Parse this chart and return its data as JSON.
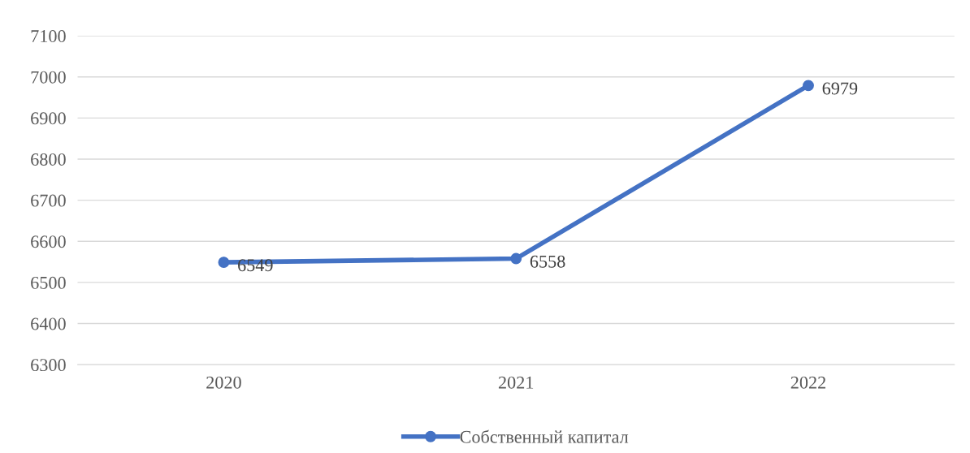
{
  "chart_data": {
    "type": "line",
    "categories": [
      "2020",
      "2021",
      "2022"
    ],
    "series": [
      {
        "name": "Собственный капитал",
        "color": "#4472c4",
        "values": [
          6549,
          6558,
          6979
        ]
      }
    ],
    "ylim": [
      6300,
      7100
    ],
    "yticks": [
      6300,
      6400,
      6500,
      6600,
      6700,
      6800,
      6900,
      7000,
      7100
    ],
    "grid": "y",
    "legend": "bottom",
    "marker": "circle",
    "line_style": "solid",
    "data_labels": true
  }
}
